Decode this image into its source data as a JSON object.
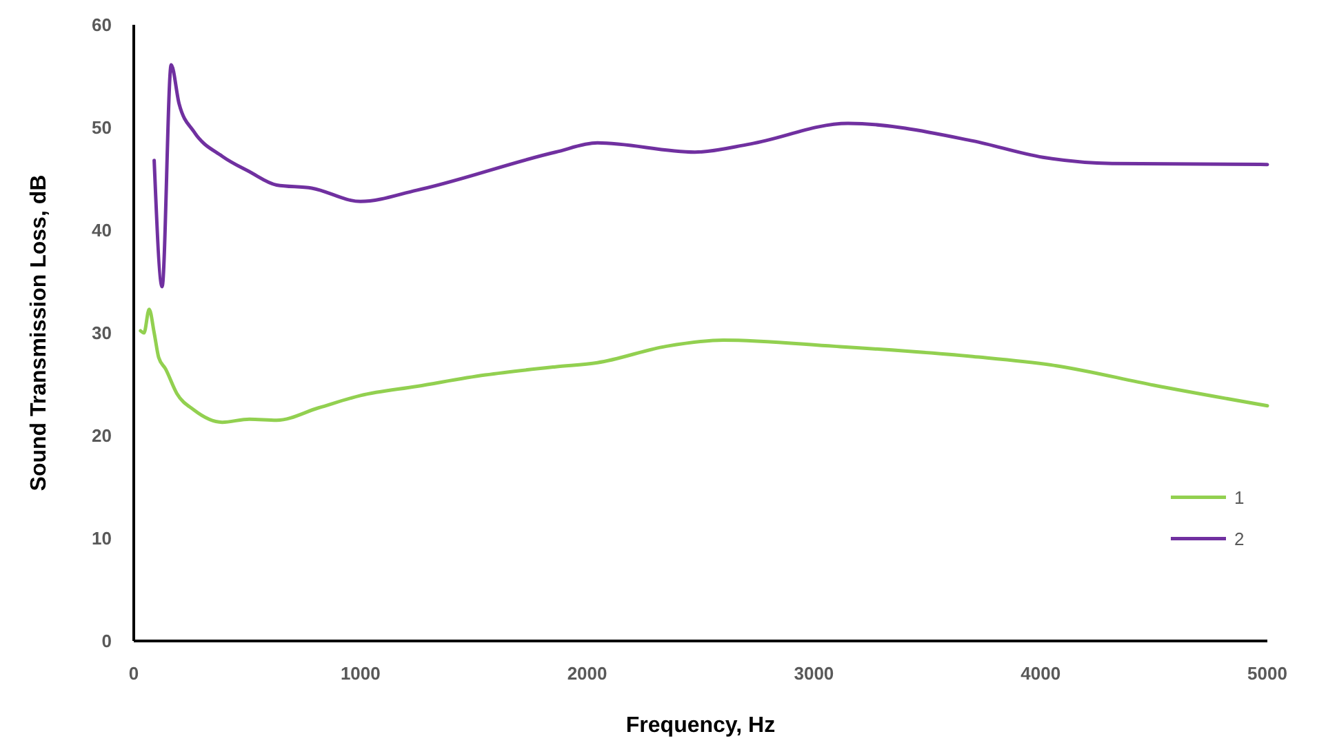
{
  "chart_data": {
    "type": "line",
    "xlabel": "Frequency, Hz",
    "ylabel": "Sound Transmission Loss, dB",
    "xlim": [
      0,
      5000
    ],
    "ylim": [
      0,
      60
    ],
    "xticks": [
      0,
      1000,
      2000,
      3000,
      4000,
      5000
    ],
    "yticks": [
      0,
      10,
      20,
      30,
      40,
      50,
      60
    ],
    "grid": false,
    "legend": "right",
    "marker": "none",
    "line_style": "solid",
    "series": [
      {
        "name": "1",
        "color": "#92d050",
        "x": [
          30,
          45,
          68,
          90,
          110,
          140,
          190,
          265,
          390,
          510,
          630,
          815,
          1000,
          1250,
          1550,
          1860,
          2045,
          2350,
          2600,
          3090,
          3700,
          4070,
          4500,
          5000
        ],
        "values": [
          30.2,
          30.0,
          32.3,
          30.0,
          27.6,
          26.5,
          24.1,
          22.5,
          21.3,
          21.6,
          21.5,
          22.7,
          23.9,
          24.8,
          25.9,
          26.7,
          27.1,
          28.7,
          29.3,
          28.7,
          27.7,
          26.8,
          24.9,
          22.9
        ]
      },
      {
        "name": "2",
        "color": "#7030a0",
        "x": [
          90,
          125,
          165,
          200,
          265,
          390,
          510,
          630,
          785,
          1000,
          1250,
          1860,
          2045,
          2475,
          2720,
          3150,
          3700,
          4010,
          4315,
          5000
        ],
        "values": [
          46.8,
          34.5,
          56.1,
          52.3,
          49.6,
          47.2,
          45.7,
          44.4,
          44.1,
          42.8,
          43.9,
          47.6,
          48.5,
          47.6,
          48.4,
          50.4,
          48.7,
          47.1,
          46.5,
          46.4
        ]
      }
    ]
  }
}
